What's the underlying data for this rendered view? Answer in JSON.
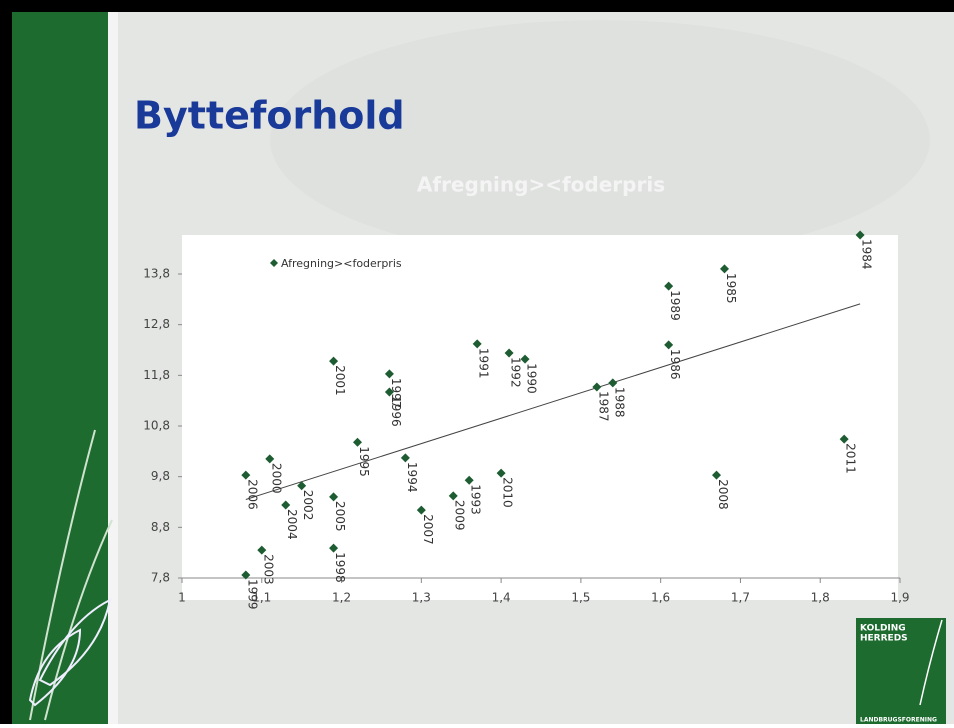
{
  "slide_title": "Bytteforhold",
  "chart_data": {
    "type": "scatter",
    "title": "Afregning><foderpris",
    "series": [
      {
        "name": "Afregning><foderpris",
        "color": "#1e5c32",
        "labels": [
          "1984",
          "1985",
          "1989",
          "1986",
          "1991",
          "1992",
          "1990",
          "2001",
          "1997",
          "1996",
          "1987",
          "1988",
          "1995",
          "2011",
          "2000",
          "1994",
          "2006",
          "2010",
          "2008",
          "1993",
          "2002",
          "2009",
          "2005",
          "2004",
          "2007",
          "1998",
          "2003",
          "1999"
        ],
        "x": [
          1.85,
          1.68,
          1.61,
          1.61,
          1.37,
          1.41,
          1.43,
          1.19,
          1.26,
          1.26,
          1.52,
          1.54,
          1.22,
          1.83,
          1.11,
          1.28,
          1.08,
          1.4,
          1.67,
          1.36,
          1.15,
          1.34,
          1.19,
          1.13,
          1.3,
          1.19,
          1.1,
          1.08
        ],
        "values": [
          14.57,
          13.9,
          13.56,
          12.4,
          12.42,
          12.24,
          12.12,
          12.08,
          11.83,
          11.47,
          11.57,
          11.65,
          10.48,
          10.54,
          10.15,
          10.17,
          9.83,
          9.87,
          9.83,
          9.73,
          9.62,
          9.42,
          9.4,
          9.24,
          9.14,
          8.39,
          8.35,
          7.86
        ]
      }
    ],
    "trendline": {
      "x": [
        1.08,
        1.85
      ],
      "y": [
        9.35,
        13.21
      ]
    },
    "xlim": [
      1,
      1.9
    ],
    "ylim": [
      7.8,
      14.6
    ],
    "xticks": [
      1,
      {
        "value": 1.1,
        "label": "1,1"
      },
      {
        "value": 1.2,
        "label": "1,2"
      },
      {
        "value": 1.3,
        "label": "1,3"
      },
      {
        "value": 1.4,
        "label": "1,4"
      },
      {
        "value": 1.5,
        "label": "1,5"
      },
      {
        "value": 1.6,
        "label": "1,6"
      },
      {
        "value": 1.7,
        "label": "1,7"
      },
      {
        "value": 1.8,
        "label": "1,8"
      },
      {
        "value": 1.9,
        "label": "1,9"
      }
    ],
    "yticks": [
      {
        "value": 7.8,
        "label": "7,8"
      },
      {
        "value": 8.8,
        "label": "8,8"
      },
      {
        "value": 9.8,
        "label": "9,8"
      },
      {
        "value": 10.8,
        "label": "10,8"
      },
      {
        "value": 11.8,
        "label": "11,8"
      },
      {
        "value": 12.8,
        "label": "12,8"
      },
      {
        "value": 13.8,
        "label": "13,8"
      }
    ],
    "legend": "top-left"
  },
  "logo": {
    "line1": "KOLDING",
    "line2": "HERREDS",
    "line3": "LANDBRUGSFORENING"
  }
}
